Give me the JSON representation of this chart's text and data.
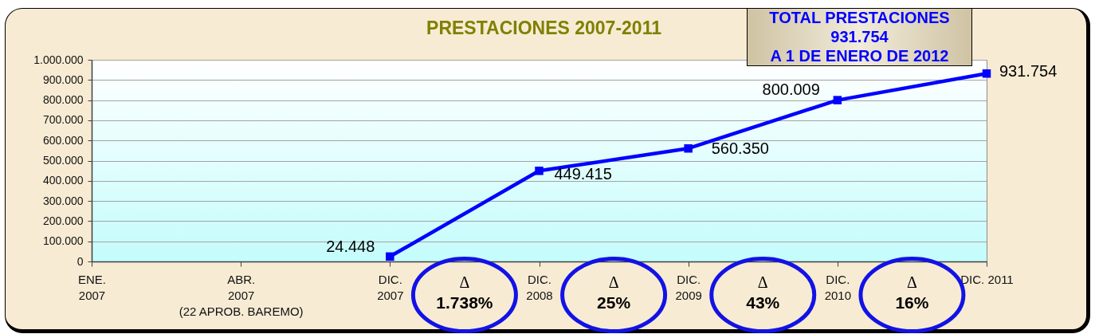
{
  "chart_data": {
    "type": "line",
    "title": "PRESTACIONES 2007-2011",
    "categories": [
      "ENE.\n2007",
      "ABR.\n2007\n(22 APROB. BAREMO)",
      "DIC.\n2007",
      "DIC.\n2008",
      "DIC.\n2009",
      "DIC.\n2010",
      "DIC. 2011"
    ],
    "values": [
      null,
      null,
      24448,
      449415,
      560350,
      800009,
      931754
    ],
    "value_labels": [
      null,
      null,
      "24.448",
      "449.415",
      "560.350",
      "800.009",
      "931.754"
    ],
    "color": "#0000ff",
    "marker": "square",
    "line_style": "solid",
    "ylim": [
      0,
      1000000
    ],
    "yticks": [
      0,
      {
        "value": 100000,
        "label": "100.000"
      },
      {
        "value": 200000,
        "label": "200.000"
      },
      {
        "value": 300000,
        "label": "300.000"
      },
      {
        "value": 400000,
        "label": "400.000"
      },
      {
        "value": 500000,
        "label": "500.000"
      },
      {
        "value": 600000,
        "label": "600.000"
      },
      {
        "value": 700000,
        "label": "700.000"
      },
      {
        "value": 800000,
        "label": "800.000"
      },
      {
        "value": 900000,
        "label": "900.000"
      },
      {
        "value": 1000000,
        "label": "1.000.000"
      }
    ],
    "grid": "y",
    "annotations": [
      "TOTAL PRESTACIONES\n931.754\nA 1 DE ENERO DE 2012",
      "Δ\n1.738%",
      "Δ\n25%",
      "Δ\n43%",
      "Δ\n16%"
    ]
  }
}
